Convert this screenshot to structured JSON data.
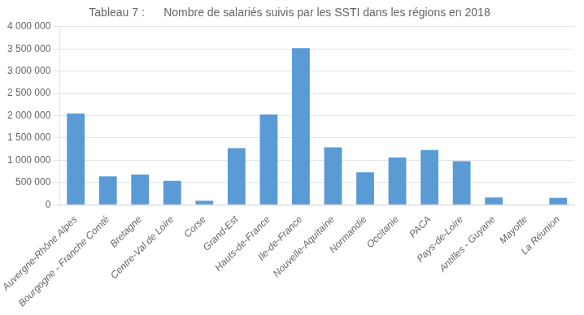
{
  "chart_data": {
    "type": "bar",
    "title": "Tableau 7 :      Nombre de salariés suivis par les SSTI dans les régions en 2018",
    "categories": [
      "Auvergne-Rhône Alpes",
      "Bourgogne - Franche Comté",
      "Bretagne",
      "Centre-Val de Loire",
      "Corse",
      "Grand-Est",
      "Hauts-de-France",
      "Ile-de-France",
      "Nouvelle-Aquitaine",
      "Normandie",
      "Occitanie",
      "PACA",
      "Pays-de-Loire",
      "Antilles - Guyane",
      "Mayotte",
      "La Réunion"
    ],
    "values": [
      2050000,
      640000,
      680000,
      540000,
      90000,
      1270000,
      2030000,
      3520000,
      1290000,
      730000,
      1060000,
      1230000,
      980000,
      165000,
      0,
      155000
    ],
    "color": "#5B9BD5",
    "ylim": [
      0,
      4000000
    ],
    "yticks": [
      0,
      {
        "value": 500000,
        "label": "500 000"
      },
      {
        "value": 1000000,
        "label": "1 000 000"
      },
      {
        "value": 1500000,
        "label": "1 500 000"
      },
      {
        "value": 2000000,
        "label": "2 000 000"
      },
      {
        "value": 2500000,
        "label": "2 500 000"
      },
      {
        "value": 3000000,
        "label": "3 000 000"
      },
      {
        "value": 3500000,
        "label": "3 500 000"
      },
      {
        "value": 4000000,
        "label": "4 000 000"
      }
    ],
    "grid": true
  }
}
